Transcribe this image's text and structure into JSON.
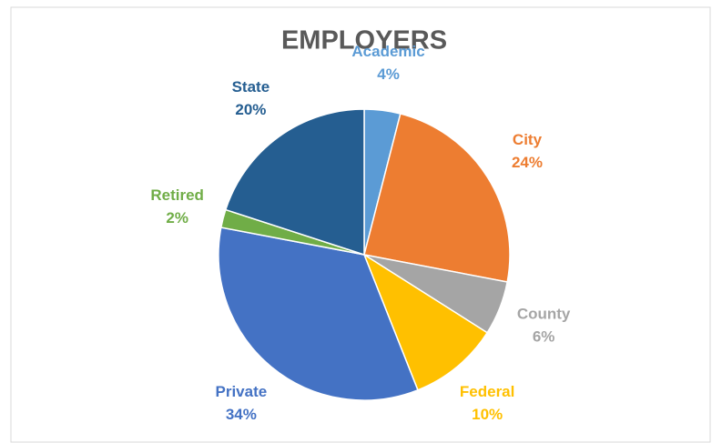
{
  "chart_data": {
    "type": "pie",
    "title": "EMPLOYERS",
    "categories": [
      "Academic",
      "City",
      "County",
      "Federal",
      "Private",
      "Retired",
      "State"
    ],
    "values": [
      4,
      24,
      6,
      10,
      34,
      2,
      20
    ],
    "value_labels": [
      "4%",
      "24%",
      "6%",
      "10%",
      "34%",
      "2%",
      "20%"
    ],
    "colors": [
      "#5b9bd5",
      "#ed7d31",
      "#a5a5a5",
      "#ffc000",
      "#4472c4",
      "#70ad47",
      "#255e91"
    ]
  }
}
